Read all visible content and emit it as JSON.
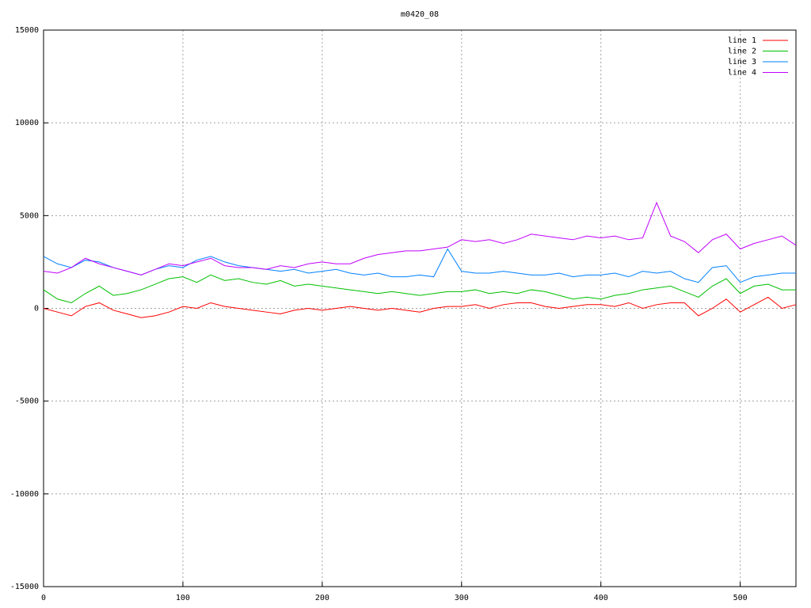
{
  "chart_data": {
    "type": "line",
    "title": "m0420_08",
    "x": [
      0,
      10,
      20,
      30,
      40,
      50,
      60,
      70,
      80,
      90,
      100,
      110,
      120,
      130,
      140,
      150,
      160,
      170,
      180,
      190,
      200,
      210,
      220,
      230,
      240,
      250,
      260,
      270,
      280,
      290,
      300,
      310,
      320,
      330,
      340,
      350,
      360,
      370,
      380,
      390,
      400,
      410,
      420,
      430,
      440,
      450,
      460,
      470,
      480,
      490,
      500,
      510,
      520,
      530,
      540
    ],
    "series": [
      {
        "name": "line 1",
        "color": "#ff0000",
        "values": [
          0,
          -200,
          -400,
          100,
          300,
          -100,
          -300,
          -500,
          -400,
          -200,
          100,
          0,
          300,
          100,
          0,
          -100,
          -200,
          -300,
          -100,
          0,
          -100,
          0,
          100,
          0,
          -100,
          0,
          -100,
          -200,
          0,
          100,
          100,
          200,
          0,
          200,
          300,
          300,
          100,
          0,
          100,
          200,
          200,
          100,
          300,
          0,
          200,
          300,
          300,
          -400,
          0,
          500,
          -200,
          200,
          600,
          0,
          200
        ]
      },
      {
        "name": "line 2",
        "color": "#00c000",
        "values": [
          1000,
          500,
          300,
          800,
          1200,
          700,
          800,
          1000,
          1300,
          1600,
          1700,
          1400,
          1800,
          1500,
          1600,
          1400,
          1300,
          1500,
          1200,
          1300,
          1200,
          1100,
          1000,
          900,
          800,
          900,
          800,
          700,
          800,
          900,
          900,
          1000,
          800,
          900,
          800,
          1000,
          900,
          700,
          500,
          600,
          500,
          700,
          800,
          1000,
          1100,
          1200,
          900,
          600,
          1200,
          1600,
          800,
          1200,
          1300,
          1000,
          1000
        ]
      },
      {
        "name": "line 3",
        "color": "#0080ff",
        "values": [
          2800,
          2400,
          2200,
          2600,
          2500,
          2200,
          2000,
          1800,
          2100,
          2300,
          2200,
          2600,
          2800,
          2500,
          2300,
          2200,
          2100,
          2000,
          2100,
          1900,
          2000,
          2100,
          1900,
          1800,
          1900,
          1700,
          1700,
          1800,
          1700,
          3200,
          2000,
          1900,
          1900,
          2000,
          1900,
          1800,
          1800,
          1900,
          1700,
          1800,
          1800,
          1900,
          1700,
          2000,
          1900,
          2000,
          1600,
          1400,
          2200,
          2300,
          1400,
          1700,
          1800,
          1900,
          1900
        ]
      },
      {
        "name": "line 4",
        "color": "#c000ff",
        "values": [
          2000,
          1900,
          2200,
          2700,
          2400,
          2200,
          2000,
          1800,
          2100,
          2400,
          2300,
          2500,
          2700,
          2300,
          2200,
          2200,
          2100,
          2300,
          2200,
          2400,
          2500,
          2400,
          2400,
          2700,
          2900,
          3000,
          3100,
          3100,
          3200,
          3300,
          3700,
          3600,
          3700,
          3500,
          3700,
          4000,
          3900,
          3800,
          3700,
          3900,
          3800,
          3900,
          3700,
          3800,
          5700,
          3900,
          3600,
          3000,
          3700,
          4000,
          3200,
          3500,
          3700,
          3900,
          3400
        ]
      }
    ],
    "xlim": [
      0,
      540
    ],
    "ylim": [
      -15000,
      15000
    ],
    "xticks": [
      0,
      100,
      200,
      300,
      400,
      500
    ],
    "yticks": [
      -15000,
      -10000,
      -5000,
      0,
      5000,
      10000,
      15000
    ],
    "grid": true,
    "legend": "upper right"
  }
}
